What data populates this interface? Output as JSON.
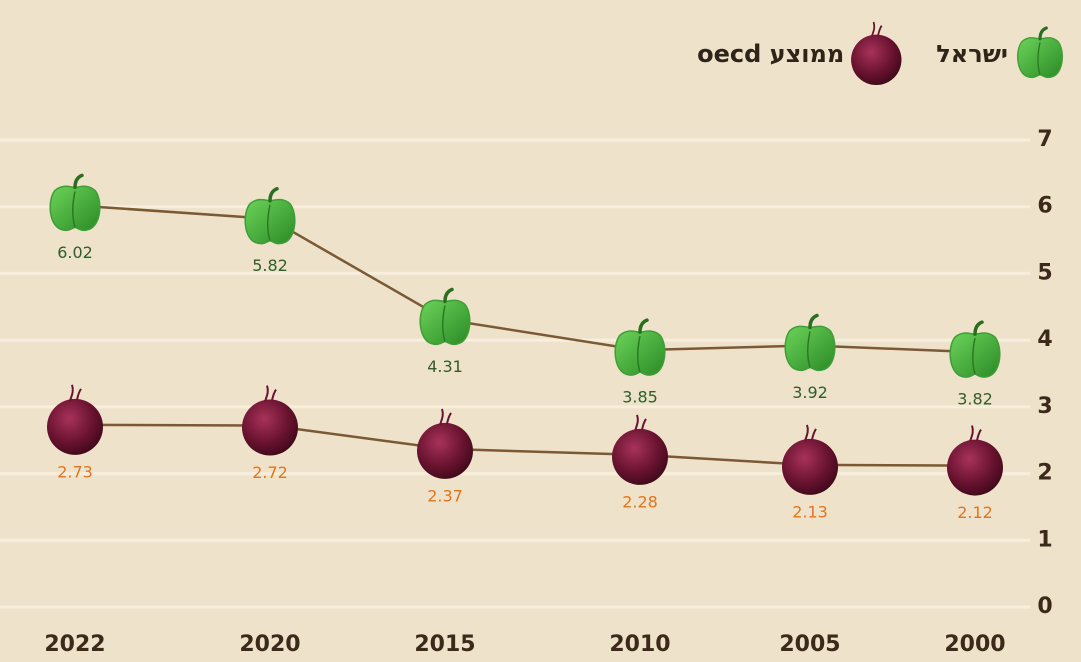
{
  "chart_data": {
    "type": "line",
    "categories": [
      "2022",
      "2020",
      "2015",
      "2010",
      "2005",
      "2000"
    ],
    "series": [
      {
        "name": "ישראל",
        "color": "#3f9e35",
        "label_color": "#2f5e2a",
        "marker": "pepper",
        "values": [
          6.02,
          5.82,
          4.31,
          3.85,
          3.92,
          3.82
        ]
      },
      {
        "name": "ממוצע oecd",
        "color": "#6a1331",
        "label_color": "#e0761c",
        "marker": "onion",
        "values": [
          2.73,
          2.72,
          2.37,
          2.28,
          2.13,
          2.12
        ]
      }
    ],
    "line_color": "#7a5934",
    "ylim": [
      0,
      7
    ],
    "yticks": [
      0,
      1,
      2,
      3,
      4,
      5,
      6,
      7
    ],
    "y_axis_side": "right",
    "grid": true,
    "legend": "top-right"
  }
}
